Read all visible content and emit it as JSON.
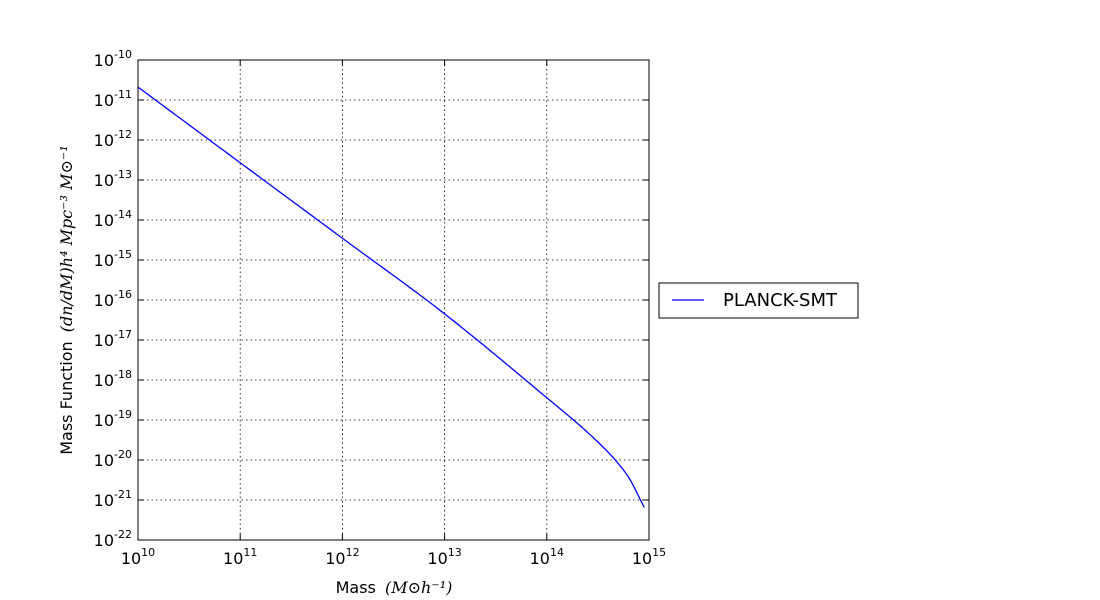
{
  "chart_data": {
    "type": "line",
    "title": "",
    "xlabel": {
      "text": "Mass",
      "math": "(M⊙h⁻¹)"
    },
    "ylabel": {
      "text": "Mass Function",
      "math": "(dn/dM)h⁴ Mpc⁻³ M⊙⁻¹"
    },
    "xscale": "log",
    "yscale": "log",
    "xlim": [
      10000000000.0,
      1000000000000000.0
    ],
    "ylim": [
      1e-22,
      1e-10
    ],
    "grid": true,
    "legend_position": "outside-right",
    "xticks": [
      {
        "base": "10",
        "exp": "10"
      },
      {
        "base": "10",
        "exp": "11"
      },
      {
        "base": "10",
        "exp": "12"
      },
      {
        "base": "10",
        "exp": "13"
      },
      {
        "base": "10",
        "exp": "14"
      },
      {
        "base": "10",
        "exp": "15"
      }
    ],
    "yticks": [
      {
        "base": "10",
        "exp": "-10"
      },
      {
        "base": "10",
        "exp": "-11"
      },
      {
        "base": "10",
        "exp": "-12"
      },
      {
        "base": "10",
        "exp": "-13"
      },
      {
        "base": "10",
        "exp": "-14"
      },
      {
        "base": "10",
        "exp": "-15"
      },
      {
        "base": "10",
        "exp": "-16"
      },
      {
        "base": "10",
        "exp": "-17"
      },
      {
        "base": "10",
        "exp": "-18"
      },
      {
        "base": "10",
        "exp": "-19"
      },
      {
        "base": "10",
        "exp": "-20"
      },
      {
        "base": "10",
        "exp": "-21"
      },
      {
        "base": "10",
        "exp": "-22"
      }
    ],
    "series": [
      {
        "name": "PLANCK-SMT",
        "color": "#0000ff",
        "x": [
          10000000000.0,
          100000000000.0,
          1000000000000.0,
          10000000000000.0,
          100000000000000.0,
          300000000000000.0,
          600000000000000.0,
          900000000000000.0
        ],
        "y": [
          2.1e-11,
          2.7e-13,
          3.5e-15,
          4.5e-17,
          3.6e-19,
          3.2e-20,
          4.5e-21,
          6.5e-22
        ]
      }
    ]
  }
}
